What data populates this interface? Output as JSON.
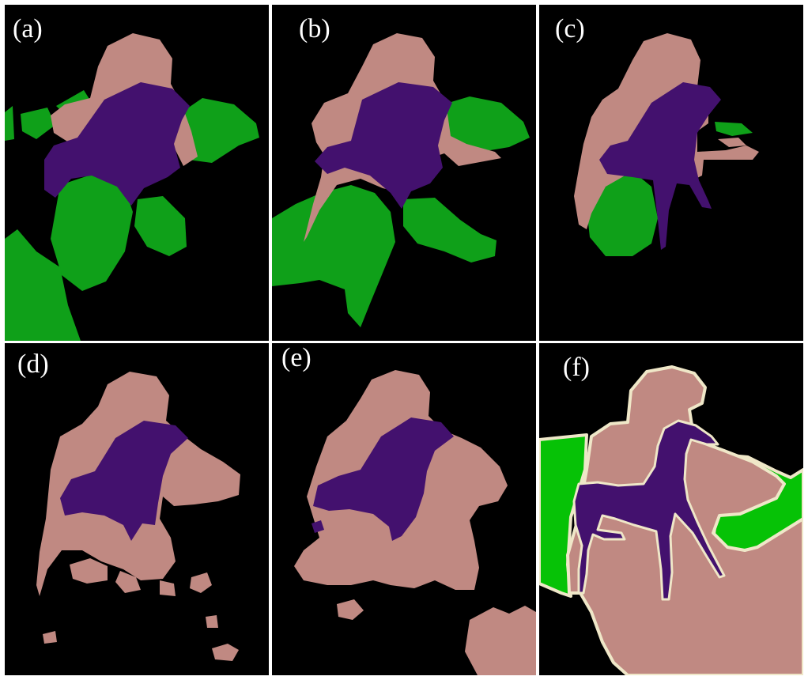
{
  "colors": {
    "background": "#000000",
    "person": "#C08982",
    "dog": "#43116E",
    "foliage": "#0FA019",
    "foliage_gt": "#06C206",
    "boundary": "#EFE7C8"
  },
  "panels": [
    {
      "id": "a",
      "label": "(a)"
    },
    {
      "id": "b",
      "label": "(b)"
    },
    {
      "id": "c",
      "label": "(c)"
    },
    {
      "id": "d",
      "label": "(d)"
    },
    {
      "id": "e",
      "label": "(e)"
    },
    {
      "id": "f",
      "label": "(f)"
    }
  ]
}
